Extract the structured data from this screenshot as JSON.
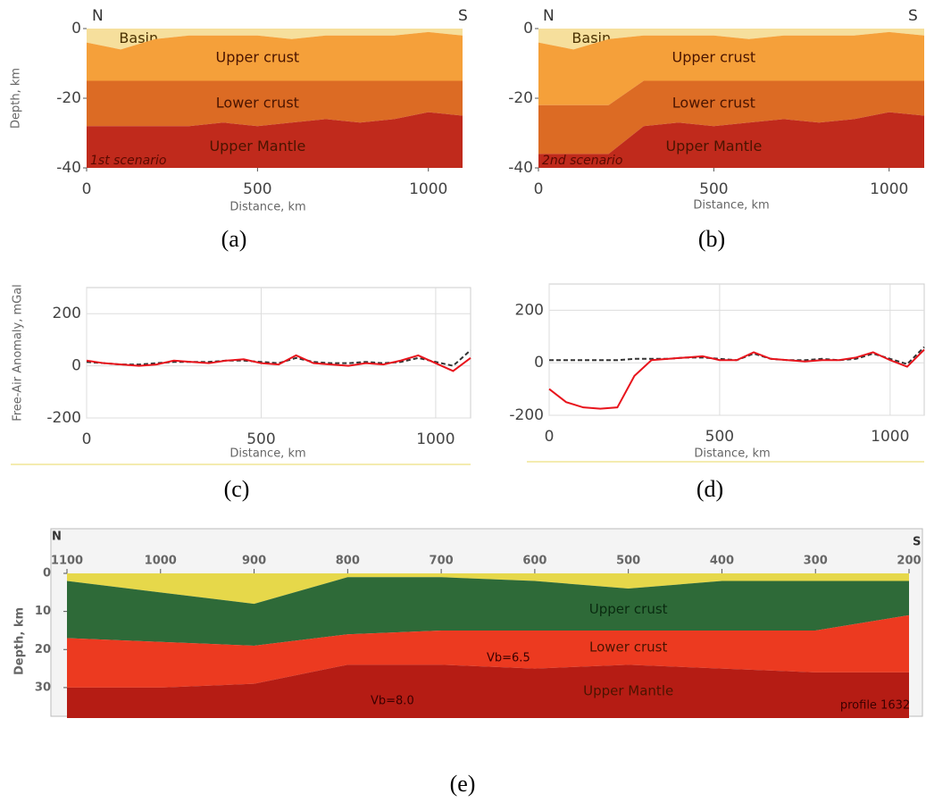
{
  "chart_data": [
    {
      "type": "layers",
      "label": "(a)",
      "x_label": "Distance, km",
      "y_label": "Depth, km",
      "annotations": [
        "N",
        "S",
        "1st scenario"
      ],
      "x": [
        0,
        100,
        200,
        300,
        400,
        500,
        600,
        700,
        800,
        900,
        1000,
        1100
      ],
      "series": [
        {
          "name": "Basin",
          "color": "#f6df9c",
          "values": [
            -4,
            -6,
            -3,
            -2,
            -2,
            -2,
            -3,
            -2,
            -2,
            -2,
            -1,
            -2
          ]
        },
        {
          "name": "Upper crust",
          "color": "#f5a03a",
          "values": [
            -11,
            -9,
            -12,
            -13,
            -13,
            -13,
            -12,
            -13,
            -13,
            -13,
            -14,
            -13
          ]
        },
        {
          "name": "Lower crust",
          "color": "#dc6b24",
          "values": [
            -13,
            -13,
            -13,
            -13,
            -12,
            -13,
            -12,
            -11,
            -12,
            -11,
            -9,
            -10
          ]
        },
        {
          "name": "Upper Mantle",
          "color": "#c02a1c",
          "values": [
            -12,
            -12,
            -12,
            -12,
            -13,
            -12,
            -13,
            -14,
            -13,
            -14,
            -16,
            -15
          ]
        }
      ],
      "xlim": [
        0,
        1100
      ],
      "ylim": [
        -40,
        0
      ],
      "xticks": [
        0,
        500,
        1000
      ],
      "yticks": [
        -40,
        -20,
        0
      ]
    },
    {
      "type": "layers",
      "label": "(b)",
      "x_label": "Distance, km",
      "annotations": [
        "N",
        "S",
        "2nd scenario"
      ],
      "x": [
        0,
        100,
        200,
        300,
        400,
        500,
        600,
        700,
        800,
        900,
        1000,
        1100
      ],
      "series": [
        {
          "name": "Basin",
          "color": "#f6df9c",
          "values": [
            -4,
            -6,
            -3,
            -2,
            -2,
            -2,
            -3,
            -2,
            -2,
            -2,
            -1,
            -2
          ]
        },
        {
          "name": "Upper crust",
          "color": "#f5a03a",
          "values": [
            -18,
            -16,
            -19,
            -13,
            -13,
            -13,
            -12,
            -13,
            -13,
            -13,
            -14,
            -13
          ]
        },
        {
          "name": "Lower crust",
          "color": "#dc6b24",
          "values": [
            -14,
            -14,
            -14,
            -13,
            -12,
            -13,
            -12,
            -11,
            -12,
            -11,
            -9,
            -10
          ]
        },
        {
          "name": "Upper Mantle",
          "color": "#c02a1c",
          "values": [
            -4,
            -4,
            -4,
            -12,
            -13,
            -12,
            -13,
            -14,
            -13,
            -14,
            -16,
            -15
          ]
        }
      ],
      "xlim": [
        0,
        1100
      ],
      "ylim": [
        -40,
        0
      ],
      "xticks": [
        0,
        500,
        1000
      ],
      "yticks": [
        -40,
        -20,
        0
      ]
    },
    {
      "type": "line",
      "label": "(c)",
      "x_label": "Distance, km",
      "y_label": "Free-Air Anomaly, mGal",
      "grid": true,
      "x": [
        0,
        50,
        100,
        150,
        200,
        250,
        300,
        350,
        400,
        450,
        500,
        550,
        600,
        650,
        700,
        750,
        800,
        850,
        900,
        950,
        1000,
        1050,
        1100
      ],
      "series": [
        {
          "color": "#333333",
          "dashed": true,
          "values": [
            15,
            10,
            5,
            5,
            10,
            15,
            15,
            15,
            20,
            20,
            15,
            10,
            30,
            15,
            10,
            10,
            15,
            10,
            15,
            30,
            15,
            0,
            60
          ]
        },
        {
          "color": "#e8141c",
          "dashed": false,
          "values": [
            20,
            10,
            5,
            0,
            5,
            20,
            15,
            10,
            20,
            25,
            10,
            5,
            40,
            10,
            5,
            0,
            10,
            5,
            20,
            40,
            10,
            -20,
            30
          ]
        }
      ],
      "xlim": [
        0,
        1100
      ],
      "ylim": [
        -200,
        300
      ],
      "xticks": [
        0,
        500,
        1000
      ],
      "yticks": [
        -200,
        0,
        200
      ]
    },
    {
      "type": "line",
      "label": "(d)",
      "x_label": "Distance, km",
      "grid": true,
      "x": [
        0,
        50,
        100,
        150,
        200,
        250,
        300,
        350,
        400,
        450,
        500,
        550,
        600,
        650,
        700,
        750,
        800,
        850,
        900,
        950,
        1000,
        1050,
        1100
      ],
      "series": [
        {
          "color": "#333333",
          "dashed": true,
          "values": [
            10,
            10,
            10,
            10,
            10,
            15,
            15,
            15,
            20,
            20,
            15,
            10,
            35,
            15,
            10,
            10,
            15,
            10,
            15,
            35,
            15,
            -5,
            60
          ]
        },
        {
          "color": "#e8141c",
          "dashed": false,
          "values": [
            -100,
            -150,
            -170,
            -175,
            -170,
            -50,
            10,
            15,
            20,
            25,
            10,
            10,
            40,
            15,
            10,
            5,
            10,
            10,
            20,
            40,
            10,
            -15,
            50
          ]
        }
      ],
      "xlim": [
        0,
        1100
      ],
      "ylim": [
        -200,
        300
      ],
      "xticks": [
        0,
        500,
        1000
      ],
      "yticks": [
        -200,
        0,
        200
      ]
    },
    {
      "type": "layers",
      "label": "(e)",
      "y_label": "Depth, km",
      "annotations": [
        "N",
        "S",
        "Vb=6.5",
        "Vb=8.0",
        "profile 1632"
      ],
      "x": [
        1100,
        1000,
        900,
        800,
        700,
        600,
        500,
        400,
        300,
        200
      ],
      "series": [
        {
          "color": "#e6d84a",
          "values": [
            2,
            5,
            8,
            1,
            1,
            2,
            4,
            2,
            2,
            2
          ]
        },
        {
          "name": "Upper crust",
          "color": "#2e6a38",
          "values": [
            15,
            13,
            11,
            15,
            14,
            13,
            11,
            13,
            13,
            9
          ]
        },
        {
          "name": "Lower crust",
          "color": "#ec3a20",
          "values": [
            13,
            12,
            10,
            8,
            9,
            10,
            9,
            10,
            11,
            15
          ]
        },
        {
          "name": "Upper Mantle",
          "color": "#b51c14",
          "values": [
            8,
            8,
            9,
            14,
            14,
            13,
            14,
            13,
            12,
            12
          ]
        }
      ],
      "xlim": [
        1100,
        200
      ],
      "ylim": [
        38,
        0
      ],
      "xticks": [
        1100,
        1000,
        900,
        800,
        700,
        600,
        500,
        400,
        300,
        200
      ],
      "yticks": [
        0,
        10,
        20,
        30
      ]
    }
  ]
}
